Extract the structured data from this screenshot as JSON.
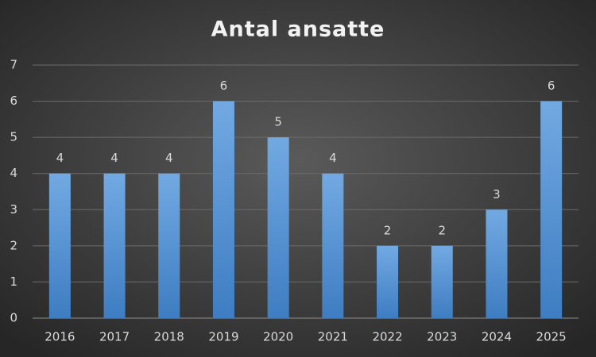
{
  "chart_data": {
    "type": "bar",
    "title": "Antal ansatte",
    "categories": [
      "2016",
      "2017",
      "2018",
      "2019",
      "2020",
      "2021",
      "2022",
      "2023",
      "2024",
      "2025"
    ],
    "values": [
      4,
      4,
      4,
      6,
      5,
      4,
      2,
      2,
      3,
      6
    ],
    "color": "#5b9bd5",
    "ylim": [
      0,
      7
    ],
    "yticks": [
      0,
      1,
      2,
      3,
      4,
      5,
      6,
      7
    ],
    "grid": true
  }
}
